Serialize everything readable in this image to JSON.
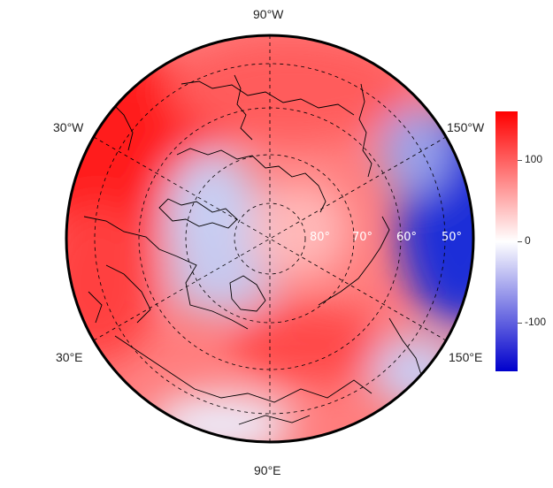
{
  "map": {
    "projection": "north-polar-stereographic",
    "longitude_labels": {
      "top": "90°W",
      "bottom": "90°E",
      "upper_left": "30°W",
      "lower_left": "30°E",
      "upper_right": "150°W",
      "lower_right": "150°E"
    },
    "latitude_labels": [
      "80°",
      "70°",
      "60°",
      "50°"
    ],
    "colors": {
      "high": "#ff0000",
      "mid": "#ffffff",
      "low": "#0000cc",
      "coastline": "#000000"
    }
  },
  "colorbar": {
    "ticks": [
      "100",
      "0",
      "-100"
    ],
    "tick_values": [
      100,
      0,
      -100
    ],
    "range": [
      -160,
      160
    ]
  }
}
